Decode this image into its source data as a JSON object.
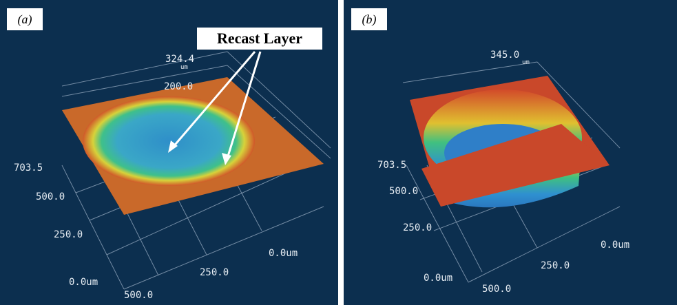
{
  "panels": [
    {
      "label": "(a)",
      "annotation": "Recast Layer",
      "labels": [
        "324.4",
        "um",
        "200.0",
        "703.5",
        "500.0",
        "250.0",
        "0.0um",
        "0.0um",
        "250.0",
        "500.0"
      ]
    },
    {
      "label": "(b)",
      "labels": [
        "345.0",
        "um",
        "703.5",
        "500.0",
        "250.0",
        "0.0um",
        "0.0um",
        "250.0",
        "500.0"
      ]
    }
  ]
}
